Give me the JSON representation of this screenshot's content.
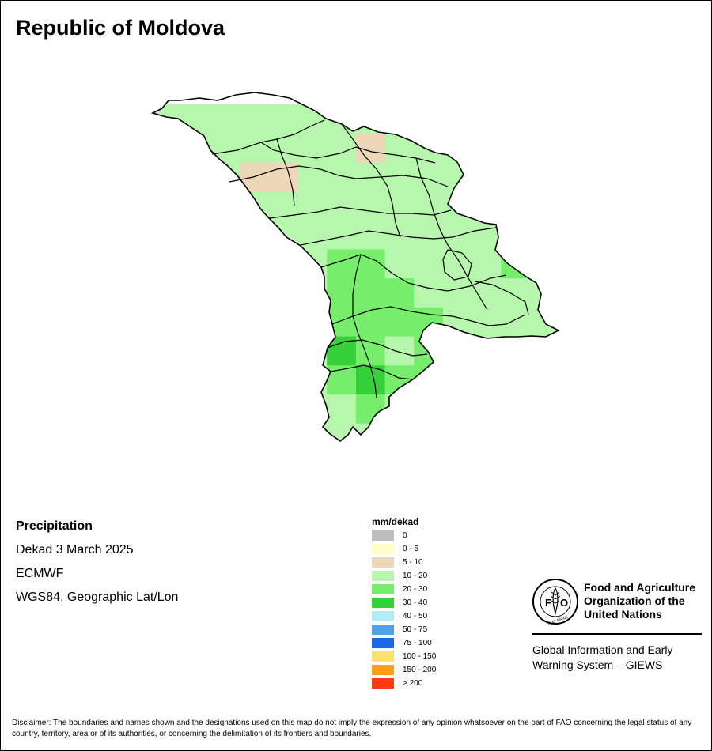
{
  "map": {
    "title": "Republic of Moldova",
    "info": {
      "variable": "Precipitation",
      "period": "Dekad 3 March 2025",
      "source": "ECMWF",
      "projection": "WGS84, Geographic Lat/Lon"
    }
  },
  "legend": {
    "title": "mm/dekad",
    "classes": [
      {
        "label": "0",
        "color": "#bebebe"
      },
      {
        "label": "0 - 5",
        "color": "#fffecb"
      },
      {
        "label": "5 - 10",
        "color": "#ecd8b8"
      },
      {
        "label": "10 - 20",
        "color": "#b7f7ad"
      },
      {
        "label": "20 - 30",
        "color": "#76ee6c"
      },
      {
        "label": "30 - 40",
        "color": "#36d13a"
      },
      {
        "label": "40 - 50",
        "color": "#b1ecf4"
      },
      {
        "label": "50 - 75",
        "color": "#4fa1e8"
      },
      {
        "label": "75 - 100",
        "color": "#1e66e8"
      },
      {
        "label": "100 - 150",
        "color": "#ffdf70"
      },
      {
        "label": "150 - 200",
        "color": "#ff9f1b"
      },
      {
        "label": "> 200",
        "color": "#ff3a12"
      }
    ]
  },
  "logo": {
    "org_line1": "Food and Agriculture",
    "org_line2": "Organization of the",
    "org_line3": "United Nations",
    "emblem_top": "FAO",
    "emblem_motto": "FIAT PANIS",
    "system_line1": "Global Information and Early",
    "system_line2": "Warning System – GIEWS"
  },
  "disclaimer": "Disclaimer: The boundaries and names shown and the designations used on this map do not imply the expression of any opinion whatsoever on the part of FAO concerning the legal status of any country, territory, area or of its authorities, or concerning the delimitation of its frontiers and boundaries."
}
